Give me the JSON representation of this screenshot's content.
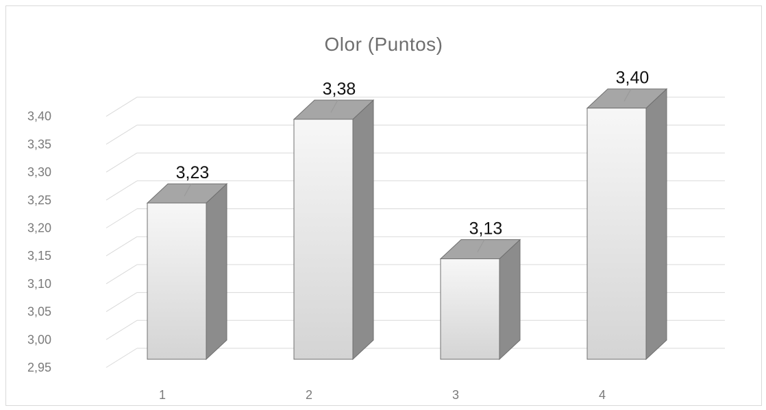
{
  "chart_data": {
    "type": "bar",
    "title": "Olor (Puntos)",
    "categories": [
      "1",
      "2",
      "3",
      "4"
    ],
    "values": [
      3.23,
      3.38,
      3.13,
      3.4
    ],
    "data_labels": [
      "3,23",
      "3,38",
      "3,13",
      "3,40"
    ],
    "y_ticks": [
      "2,95",
      "3,00",
      "3,05",
      "3,10",
      "3,15",
      "3,20",
      "3,25",
      "3,30",
      "3,35",
      "3,40"
    ],
    "ylim": [
      2.95,
      3.45
    ],
    "grid": true,
    "style": "3d-column",
    "colors": {
      "bar_front": "#e8e8e8",
      "bar_side": "#8c8c8c",
      "bar_top": "#a6a6a6",
      "grid": "#d9d9d9"
    }
  }
}
